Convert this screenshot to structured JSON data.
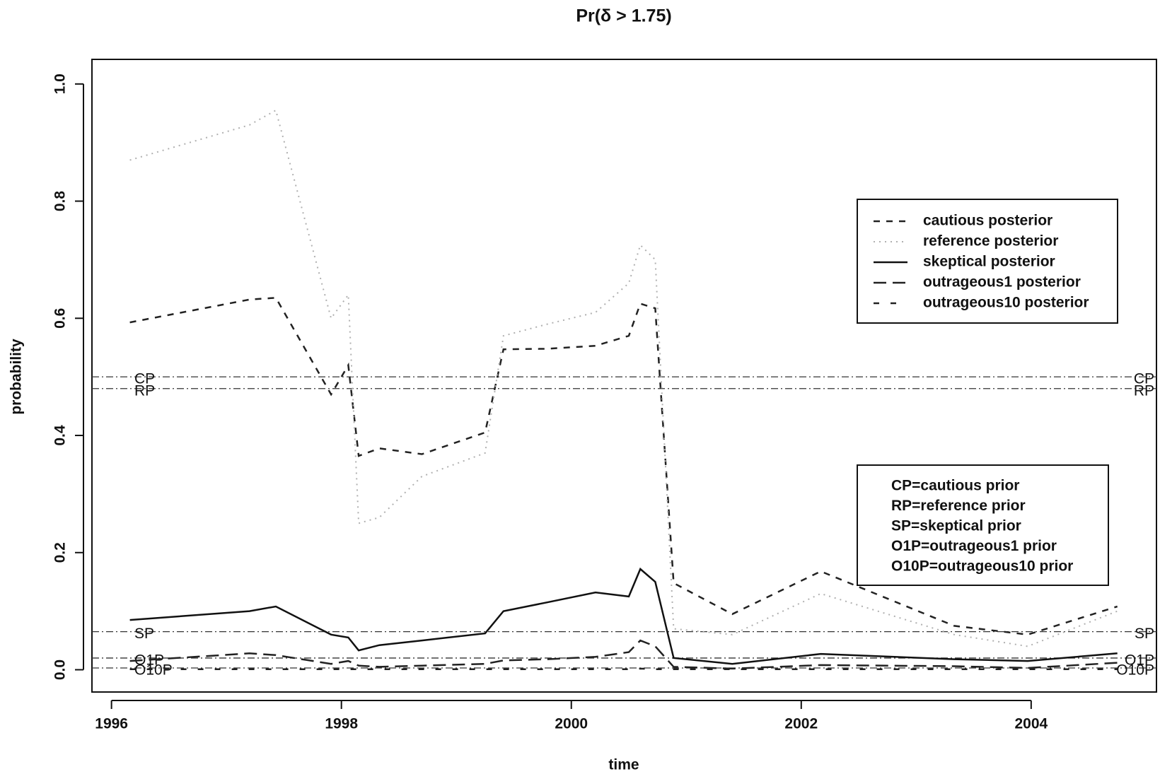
{
  "chart_data": {
    "type": "line",
    "title": "Pr(δ > 1.75)",
    "x_label": "time",
    "y_label": "probability",
    "x": [
      1996.16,
      1997.2,
      1997.43,
      1997.91,
      1998.06,
      1998.15,
      1998.33,
      1998.7,
      1999.25,
      1999.41,
      1999.79,
      2000.21,
      2000.5,
      2000.6,
      2000.73,
      2000.89,
      2001.4,
      2002.17,
      2003.33,
      2003.97,
      2004.75
    ],
    "series": [
      {
        "name": "cautious posterior",
        "color": "#222222",
        "linestyle": "dashed",
        "values": [
          0.593,
          0.632,
          0.635,
          0.47,
          0.52,
          0.365,
          0.378,
          0.368,
          0.405,
          0.547,
          0.548,
          0.553,
          0.57,
          0.625,
          0.617,
          0.148,
          0.095,
          0.168,
          0.075,
          0.06,
          0.108
        ]
      },
      {
        "name": "reference posterior",
        "color": "#b0b0b0",
        "linestyle": "dotted",
        "values": [
          0.87,
          0.93,
          0.955,
          0.6,
          0.64,
          0.25,
          0.26,
          0.33,
          0.37,
          0.57,
          0.59,
          0.61,
          0.66,
          0.725,
          0.7,
          0.07,
          0.06,
          0.13,
          0.06,
          0.04,
          0.1
        ]
      },
      {
        "name": "skeptical posterior",
        "color": "#111111",
        "linestyle": "solid",
        "values": [
          0.085,
          0.1,
          0.108,
          0.06,
          0.055,
          0.033,
          0.042,
          0.05,
          0.062,
          0.1,
          0.115,
          0.132,
          0.125,
          0.172,
          0.15,
          0.02,
          0.01,
          0.027,
          0.018,
          0.015,
          0.028
        ]
      },
      {
        "name": "outrageous1 posterior",
        "color": "#222222",
        "linestyle": "longdash",
        "values": [
          0.015,
          0.028,
          0.025,
          0.01,
          0.015,
          0.007,
          0.005,
          0.007,
          0.01,
          0.016,
          0.018,
          0.022,
          0.03,
          0.05,
          0.04,
          0.005,
          0.002,
          0.008,
          0.006,
          0.003,
          0.012
        ]
      },
      {
        "name": "outrageous10 posterior",
        "color": "#222222",
        "linestyle": "sparse",
        "values": [
          0.001,
          0.001,
          0.001,
          0.001,
          0.001,
          0.001,
          0.001,
          0.001,
          0.001,
          0.001,
          0.001,
          0.001,
          0.001,
          0.002,
          0.001,
          0.001,
          0.001,
          0.001,
          0.001,
          0.001,
          0.001
        ]
      }
    ],
    "priors": [
      {
        "label": "CP",
        "value": 0.5
      },
      {
        "label": "RP",
        "value": 0.48
      },
      {
        "label": "SP",
        "value": 0.065
      },
      {
        "label": "O1P",
        "value": 0.02
      },
      {
        "label": "O10P",
        "value": 0.003
      }
    ],
    "prior_legend": [
      "CP=cautious prior",
      "RP=reference prior",
      "SP=skeptical prior",
      "O1P=outrageous1 prior",
      "O10P=outrageous10 prior"
    ],
    "xlim": [
      1995.83,
      2005.09
    ],
    "ylim": [
      -0.038,
      1.042
    ],
    "xticks": [
      1996,
      1998,
      2000,
      2002,
      2004
    ],
    "yticks": [
      {
        "value": 0,
        "label": "0.0"
      },
      0.2,
      0.4,
      0.6,
      0.8,
      {
        "value": 1,
        "label": "1.0"
      }
    ]
  }
}
